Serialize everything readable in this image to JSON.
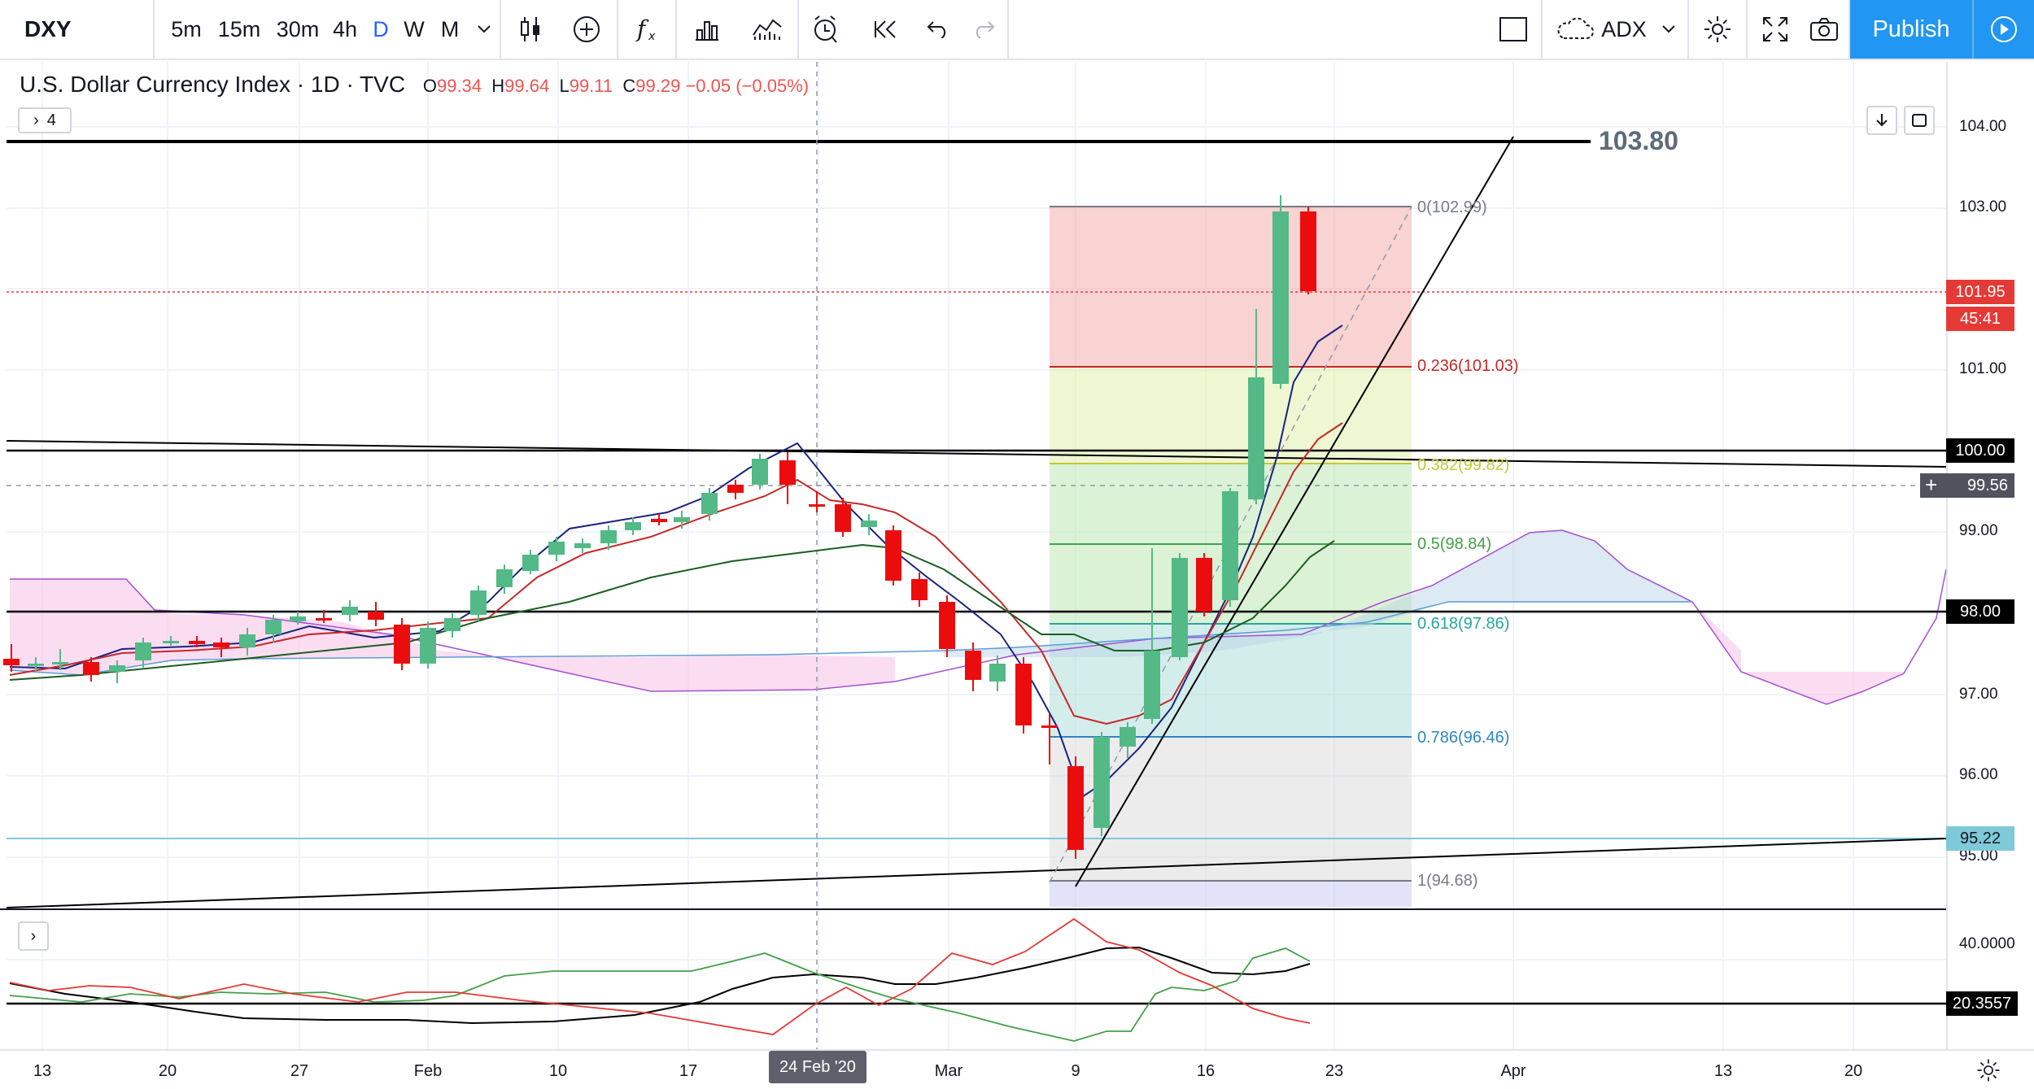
{
  "toolbar": {
    "symbol": "DXY",
    "intervals": [
      "5m",
      "15m",
      "30m",
      "4h",
      "D",
      "W",
      "M"
    ],
    "indicator": "ADX",
    "publish_label": "Publish"
  },
  "legend": {
    "title": "U.S. Dollar Currency Index · 1D · TVC",
    "open_label": "O",
    "open": "99.34",
    "high_label": "H",
    "high": "99.64",
    "low_label": "L",
    "low": "99.11",
    "close_label": "C",
    "close": "99.29",
    "change": "−0.05 (−0.05%)",
    "collapsed_count": "4"
  },
  "price_scale": {
    "ticks": [
      "104.00",
      "103.00",
      "101.00",
      "99.00",
      "97.00",
      "96.00",
      "95.00"
    ],
    "badges": [
      {
        "value": "101.95",
        "color": "#e53935"
      },
      {
        "value": "45:41",
        "color": "#e53935"
      },
      {
        "value": "100.00",
        "color": "#000000"
      },
      {
        "value": "99.56",
        "color": "#50535e"
      },
      {
        "value": "98.00",
        "color": "#000000"
      },
      {
        "value": "95.22",
        "color": "#7fc9d8"
      }
    ],
    "line_label": "103.80"
  },
  "fib_levels": [
    {
      "label": "0(102.99)",
      "color": "#787b86"
    },
    {
      "label": "0.236(101.03)",
      "color": "#c62828"
    },
    {
      "label": "0.382(99.82)",
      "color": "#c0ca33"
    },
    {
      "label": "0.5(98.84)",
      "color": "#43a047"
    },
    {
      "label": "0.618(97.86)",
      "color": "#26a69a"
    },
    {
      "label": "0.786(96.46)",
      "color": "#2e86c1"
    },
    {
      "label": "1(94.68)",
      "color": "#787b86"
    }
  ],
  "time_axis": {
    "labels": [
      "13",
      "20",
      "27",
      "Feb",
      "10",
      "17",
      "Mar",
      "9",
      "16",
      "23",
      "Apr",
      "13",
      "20"
    ],
    "cursor_date": "24 Feb '20"
  },
  "adx_pane": {
    "ticks": [
      "40.0000"
    ],
    "badge": "20.3557"
  },
  "colors": {
    "up": "#53b987",
    "down": "#eb0d0d",
    "accent": "#2196f3"
  },
  "icons": [
    "candles-icon",
    "add-icon",
    "fx-icon",
    "bars-compare-icon",
    "indicators-icon",
    "alert-icon",
    "replay-icon",
    "undo-icon",
    "redo-icon",
    "rectangle-icon",
    "cloud-icon",
    "gear-icon",
    "fullscreen-icon",
    "camera-icon",
    "play-icon"
  ]
}
